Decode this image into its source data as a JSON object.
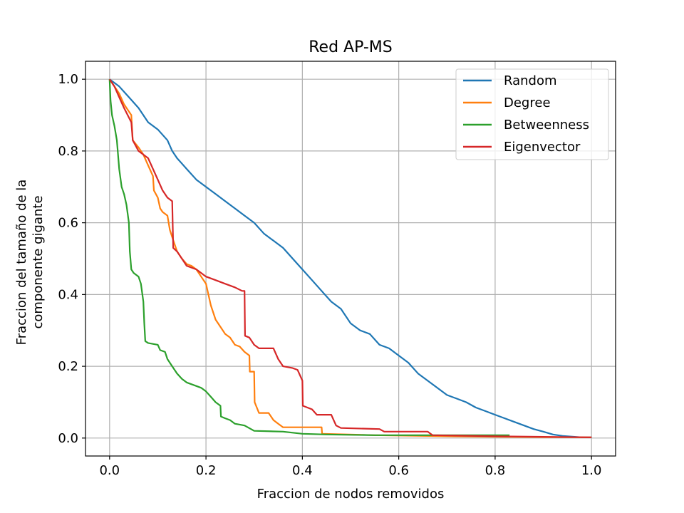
{
  "chart_data": {
    "type": "line",
    "title": "Red AP-MS",
    "xlabel": "Fraccion de nodos removidos",
    "ylabel_lines": [
      "Fraccion del tamaño de la",
      "componente gigante"
    ],
    "xlim": [
      -0.05,
      1.05
    ],
    "ylim": [
      -0.05,
      1.05
    ],
    "xticks": [
      0.0,
      0.2,
      0.4,
      0.6,
      0.8,
      1.0
    ],
    "yticks": [
      0.0,
      0.2,
      0.4,
      0.6,
      0.8,
      1.0
    ],
    "tick_labels_x": [
      "0.0",
      "0.2",
      "0.4",
      "0.6",
      "0.8",
      "1.0"
    ],
    "tick_labels_y": [
      "0.0",
      "0.2",
      "0.4",
      "0.6",
      "0.8",
      "1.0"
    ],
    "grid": true,
    "legend_position": "top-right",
    "series": [
      {
        "name": "Random",
        "color": "#1f77b4",
        "points": [
          [
            0,
            1.0
          ],
          [
            0.02,
            0.98
          ],
          [
            0.04,
            0.95
          ],
          [
            0.06,
            0.92
          ],
          [
            0.08,
            0.88
          ],
          [
            0.1,
            0.86
          ],
          [
            0.12,
            0.83
          ],
          [
            0.13,
            0.8
          ],
          [
            0.14,
            0.78
          ],
          [
            0.16,
            0.75
          ],
          [
            0.18,
            0.72
          ],
          [
            0.2,
            0.7
          ],
          [
            0.22,
            0.68
          ],
          [
            0.24,
            0.66
          ],
          [
            0.26,
            0.64
          ],
          [
            0.28,
            0.62
          ],
          [
            0.3,
            0.6
          ],
          [
            0.32,
            0.57
          ],
          [
            0.34,
            0.55
          ],
          [
            0.36,
            0.53
          ],
          [
            0.38,
            0.5
          ],
          [
            0.4,
            0.47
          ],
          [
            0.42,
            0.44
          ],
          [
            0.44,
            0.41
          ],
          [
            0.46,
            0.38
          ],
          [
            0.48,
            0.36
          ],
          [
            0.5,
            0.32
          ],
          [
            0.52,
            0.3
          ],
          [
            0.54,
            0.29
          ],
          [
            0.56,
            0.26
          ],
          [
            0.58,
            0.25
          ],
          [
            0.6,
            0.23
          ],
          [
            0.62,
            0.21
          ],
          [
            0.64,
            0.18
          ],
          [
            0.66,
            0.16
          ],
          [
            0.68,
            0.14
          ],
          [
            0.7,
            0.12
          ],
          [
            0.72,
            0.11
          ],
          [
            0.74,
            0.1
          ],
          [
            0.76,
            0.085
          ],
          [
            0.78,
            0.075
          ],
          [
            0.8,
            0.065
          ],
          [
            0.82,
            0.055
          ],
          [
            0.84,
            0.045
          ],
          [
            0.86,
            0.035
          ],
          [
            0.88,
            0.025
          ],
          [
            0.9,
            0.018
          ],
          [
            0.92,
            0.01
          ],
          [
            0.94,
            0.006
          ],
          [
            0.96,
            0.004
          ],
          [
            0.98,
            0.002
          ],
          [
            1.0,
            0.002
          ]
        ]
      },
      {
        "name": "Degree",
        "color": "#ff7f0e",
        "points": [
          [
            0,
            1.0
          ],
          [
            0.01,
            0.98
          ],
          [
            0.02,
            0.96
          ],
          [
            0.03,
            0.93
          ],
          [
            0.045,
            0.9
          ],
          [
            0.048,
            0.83
          ],
          [
            0.06,
            0.81
          ],
          [
            0.07,
            0.79
          ],
          [
            0.08,
            0.76
          ],
          [
            0.09,
            0.73
          ],
          [
            0.092,
            0.69
          ],
          [
            0.1,
            0.67
          ],
          [
            0.105,
            0.64
          ],
          [
            0.11,
            0.63
          ],
          [
            0.12,
            0.62
          ],
          [
            0.125,
            0.58
          ],
          [
            0.13,
            0.56
          ],
          [
            0.14,
            0.52
          ],
          [
            0.15,
            0.5
          ],
          [
            0.16,
            0.485
          ],
          [
            0.17,
            0.48
          ],
          [
            0.18,
            0.47
          ],
          [
            0.19,
            0.45
          ],
          [
            0.2,
            0.43
          ],
          [
            0.205,
            0.4
          ],
          [
            0.21,
            0.37
          ],
          [
            0.22,
            0.33
          ],
          [
            0.23,
            0.31
          ],
          [
            0.24,
            0.29
          ],
          [
            0.25,
            0.28
          ],
          [
            0.26,
            0.26
          ],
          [
            0.27,
            0.255
          ],
          [
            0.28,
            0.24
          ],
          [
            0.29,
            0.23
          ],
          [
            0.291,
            0.185
          ],
          [
            0.3,
            0.185
          ],
          [
            0.301,
            0.1
          ],
          [
            0.31,
            0.07
          ],
          [
            0.33,
            0.07
          ],
          [
            0.34,
            0.05
          ],
          [
            0.35,
            0.04
          ],
          [
            0.36,
            0.03
          ],
          [
            0.44,
            0.03
          ],
          [
            0.441,
            0.012
          ],
          [
            0.55,
            0.008
          ],
          [
            0.7,
            0.005
          ],
          [
            0.85,
            0.003
          ],
          [
            1.0,
            0.002
          ]
        ]
      },
      {
        "name": "Betweenness",
        "color": "#2ca02c",
        "points": [
          [
            0,
            1.0
          ],
          [
            0.002,
            0.94
          ],
          [
            0.005,
            0.9
          ],
          [
            0.01,
            0.87
          ],
          [
            0.015,
            0.83
          ],
          [
            0.02,
            0.75
          ],
          [
            0.025,
            0.7
          ],
          [
            0.03,
            0.68
          ],
          [
            0.035,
            0.65
          ],
          [
            0.04,
            0.6
          ],
          [
            0.042,
            0.52
          ],
          [
            0.045,
            0.47
          ],
          [
            0.05,
            0.46
          ],
          [
            0.06,
            0.45
          ],
          [
            0.065,
            0.43
          ],
          [
            0.07,
            0.38
          ],
          [
            0.072,
            0.32
          ],
          [
            0.074,
            0.27
          ],
          [
            0.08,
            0.265
          ],
          [
            0.1,
            0.26
          ],
          [
            0.105,
            0.245
          ],
          [
            0.115,
            0.24
          ],
          [
            0.12,
            0.22
          ],
          [
            0.13,
            0.2
          ],
          [
            0.14,
            0.18
          ],
          [
            0.15,
            0.165
          ],
          [
            0.16,
            0.155
          ],
          [
            0.17,
            0.15
          ],
          [
            0.18,
            0.145
          ],
          [
            0.19,
            0.14
          ],
          [
            0.2,
            0.13
          ],
          [
            0.21,
            0.115
          ],
          [
            0.22,
            0.1
          ],
          [
            0.23,
            0.09
          ],
          [
            0.231,
            0.06
          ],
          [
            0.24,
            0.055
          ],
          [
            0.25,
            0.05
          ],
          [
            0.26,
            0.04
          ],
          [
            0.28,
            0.035
          ],
          [
            0.3,
            0.02
          ],
          [
            0.36,
            0.018
          ],
          [
            0.4,
            0.012
          ],
          [
            0.45,
            0.01
          ],
          [
            0.55,
            0.008
          ],
          [
            0.7,
            0.008
          ],
          [
            0.83,
            0.008
          ]
        ]
      },
      {
        "name": "Eigenvector",
        "color": "#d62728",
        "points": [
          [
            0,
            1.0
          ],
          [
            0.01,
            0.98
          ],
          [
            0.02,
            0.95
          ],
          [
            0.03,
            0.92
          ],
          [
            0.045,
            0.88
          ],
          [
            0.048,
            0.83
          ],
          [
            0.06,
            0.8
          ],
          [
            0.08,
            0.78
          ],
          [
            0.09,
            0.75
          ],
          [
            0.1,
            0.72
          ],
          [
            0.11,
            0.69
          ],
          [
            0.12,
            0.67
          ],
          [
            0.13,
            0.66
          ],
          [
            0.132,
            0.53
          ],
          [
            0.14,
            0.52
          ],
          [
            0.15,
            0.5
          ],
          [
            0.16,
            0.48
          ],
          [
            0.18,
            0.47
          ],
          [
            0.2,
            0.45
          ],
          [
            0.22,
            0.44
          ],
          [
            0.24,
            0.43
          ],
          [
            0.26,
            0.42
          ],
          [
            0.275,
            0.41
          ],
          [
            0.28,
            0.41
          ],
          [
            0.281,
            0.285
          ],
          [
            0.29,
            0.28
          ],
          [
            0.3,
            0.26
          ],
          [
            0.31,
            0.25
          ],
          [
            0.34,
            0.25
          ],
          [
            0.35,
            0.22
          ],
          [
            0.36,
            0.2
          ],
          [
            0.38,
            0.195
          ],
          [
            0.39,
            0.19
          ],
          [
            0.4,
            0.16
          ],
          [
            0.401,
            0.09
          ],
          [
            0.42,
            0.08
          ],
          [
            0.43,
            0.065
          ],
          [
            0.46,
            0.065
          ],
          [
            0.47,
            0.035
          ],
          [
            0.48,
            0.028
          ],
          [
            0.56,
            0.025
          ],
          [
            0.57,
            0.018
          ],
          [
            0.66,
            0.018
          ],
          [
            0.67,
            0.008
          ],
          [
            0.8,
            0.005
          ],
          [
            1.0,
            0.002
          ]
        ]
      }
    ]
  }
}
